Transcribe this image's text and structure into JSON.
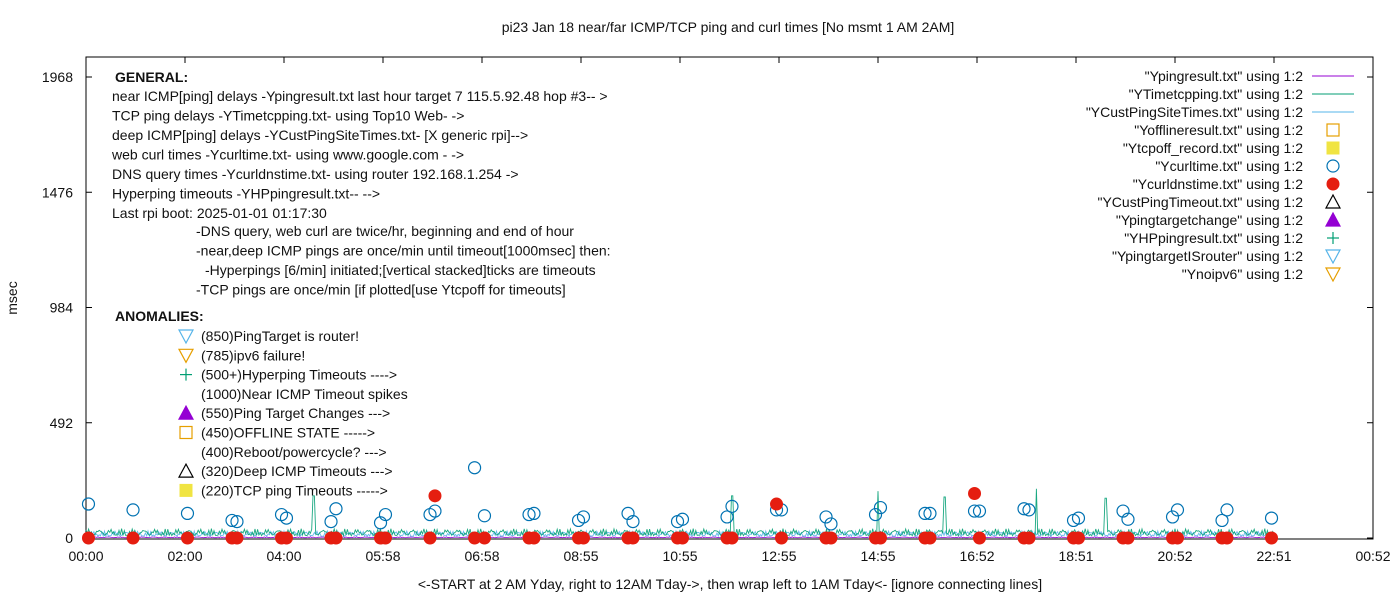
{
  "chart_data": {
    "type": "line",
    "title": "pi23 Jan 18  near/far ICMP/TCP  ping and curl times [No msmt 1 AM 2AM]",
    "xlabel": "<-START at 2 AM Yday, right to 12AM Tday->, then wrap left to 1AM Tday<- [ignore connecting lines]",
    "ylabel": "msec",
    "ylim": [
      0,
      2000
    ],
    "grid": false,
    "legend_position": "top-right",
    "x_ticks": [
      "00:00",
      "02:00",
      "04:00",
      "05:58",
      "06:58",
      "08:55",
      "10:55",
      "12:55",
      "14:55",
      "16:52",
      "18:51",
      "20:52",
      "22:51",
      "00:52"
    ],
    "y_ticks": [
      0,
      492,
      984,
      1476,
      1968
    ],
    "annotations": {
      "general_header": "GENERAL:",
      "general_lines": [
        "near ICMP[ping] delays -Ypingresult.txt last hour target 7 115.5.92.48 hop #3-- >",
        "TCP ping delays -YTimetcpping.txt- using Top10 Web- ->",
        "deep ICMP[ping] delays -YCustPingSiteTimes.txt- [X generic rpi]-->",
        "web curl times -Ycurltime.txt- using www.google.com - ->",
        "DNS query times -Ycurldnstime.txt- using router 192.168.1.254 ->",
        "Hyperping timeouts -YHPpingresult.txt-- -->",
        "Last rpi boot: 2025-01-01 01:17:30"
      ],
      "general_notes": [
        "-DNS query, web curl are twice/hr, beginning and end of hour",
        "-near,deep ICMP pings are once/min until timeout[1000msec] then:",
        "-Hyperpings [6/min] initiated;[vertical stacked]ticks are timeouts",
        "-TCP pings are once/min [if plotted[use Ytcpoff for timeouts]"
      ],
      "anomalies_header": "ANOMALIES:",
      "anomalies": [
        {
          "text": "(850)PingTarget is router!",
          "marker": "triangle-down-open",
          "color": "#56b4e9"
        },
        {
          "text": "(785)ipv6 failure!",
          "marker": "triangle-down-open",
          "color": "#e69f00"
        },
        {
          "text": "(500+)Hyperping Timeouts ---->",
          "marker": "plus",
          "color": "#009e73"
        },
        {
          "text": "(1000)Near ICMP Timeout spikes",
          "marker": "",
          "color": ""
        },
        {
          "text": "(550)Ping Target Changes --->",
          "marker": "triangle-up-filled",
          "color": "#9400d3"
        },
        {
          "text": "(450)OFFLINE STATE ----->",
          "marker": "square-open",
          "color": "#e69f00"
        },
        {
          "text": "(400)Reboot/powercycle? --->",
          "marker": "",
          "color": ""
        },
        {
          "text": "(320)Deep ICMP Timeouts --->",
          "marker": "triangle-up-open",
          "color": "#000000"
        },
        {
          "text": "(220)TCP ping Timeouts ----->",
          "marker": "square-filled",
          "color": "#f0e442"
        }
      ]
    },
    "legend": [
      {
        "label": "\"Ypingresult.txt\" using 1:2",
        "style": "line",
        "color": "#9400d3"
      },
      {
        "label": "\"YTimetcpping.txt\" using 1:2",
        "style": "line",
        "color": "#009e73"
      },
      {
        "label": "\"YCustPingSiteTimes.txt\" using 1:2",
        "style": "line",
        "color": "#56b4e9"
      },
      {
        "label": "\"Yofflineresult.txt\" using 1:2",
        "style": "square-open",
        "color": "#e69f00"
      },
      {
        "label": "\"Ytcpoff_record.txt\" using 1:2",
        "style": "square-filled",
        "color": "#f0e442"
      },
      {
        "label": "\"Ycurltime.txt\" using 1:2",
        "style": "circle-open",
        "color": "#0072b2"
      },
      {
        "label": "\"Ycurldnstime.txt\" using 1:2",
        "style": "circle-filled",
        "color": "#e51e10"
      },
      {
        "label": "\"YCustPingTimeout.txt\" using 1:2",
        "style": "triangle-up-open",
        "color": "#000000"
      },
      {
        "label": "\"Ypingtargetchange\" using 1:2",
        "style": "triangle-up-filled",
        "color": "#9400d3"
      },
      {
        "label": "\"YHPpingresult.txt\" using 1:2",
        "style": "plus",
        "color": "#009e73"
      },
      {
        "label": "\"YpingtargetISrouter\" using 1:2",
        "style": "triangle-down-open",
        "color": "#56b4e9"
      },
      {
        "label": "\"Ynoipv6\" using 1:2",
        "style": "triangle-down-open",
        "color": "#e69f00"
      }
    ],
    "series": [
      {
        "name": "\"Ycurltime.txt\" using 1:2",
        "marker": "circle-open",
        "color": "#0072b2",
        "points": [
          [
            0.05,
            145
          ],
          [
            0.95,
            120
          ],
          [
            2.05,
            105
          ],
          [
            2.95,
            75
          ],
          [
            3.05,
            70
          ],
          [
            3.95,
            100
          ],
          [
            4.05,
            85
          ],
          [
            4.95,
            70
          ],
          [
            5.05,
            125
          ],
          [
            5.95,
            65
          ],
          [
            6.05,
            100
          ],
          [
            6.95,
            100
          ],
          [
            7.05,
            115
          ],
          [
            7.85,
            300
          ],
          [
            8.05,
            95
          ],
          [
            8.95,
            100
          ],
          [
            9.05,
            105
          ],
          [
            9.95,
            75
          ],
          [
            10.05,
            90
          ],
          [
            10.95,
            105
          ],
          [
            11.05,
            70
          ],
          [
            11.95,
            70
          ],
          [
            12.05,
            80
          ],
          [
            12.95,
            90
          ],
          [
            13.05,
            135
          ],
          [
            13.95,
            120
          ],
          [
            14.05,
            120
          ],
          [
            14.95,
            90
          ],
          [
            15.05,
            60
          ],
          [
            15.95,
            100
          ],
          [
            16.05,
            130
          ],
          [
            16.95,
            105
          ],
          [
            17.05,
            105
          ],
          [
            17.95,
            115
          ],
          [
            18.05,
            115
          ],
          [
            18.95,
            125
          ],
          [
            19.05,
            120
          ],
          [
            19.95,
            75
          ],
          [
            20.05,
            85
          ],
          [
            20.95,
            115
          ],
          [
            21.05,
            80
          ],
          [
            21.95,
            90
          ],
          [
            22.05,
            120
          ],
          [
            22.95,
            75
          ],
          [
            23.05,
            120
          ],
          [
            23.95,
            85
          ]
        ]
      },
      {
        "name": "\"Ycurldnstime.txt\" using 1:2",
        "marker": "circle-filled",
        "color": "#e51e10",
        "points": [
          [
            0.05,
            0
          ],
          [
            0.95,
            0
          ],
          [
            2.05,
            0
          ],
          [
            2.95,
            0
          ],
          [
            3.05,
            0
          ],
          [
            3.95,
            0
          ],
          [
            4.05,
            0
          ],
          [
            4.95,
            0
          ],
          [
            5.05,
            0
          ],
          [
            5.95,
            0
          ],
          [
            6.05,
            0
          ],
          [
            6.95,
            0
          ],
          [
            7.05,
            180
          ],
          [
            7.85,
            0
          ],
          [
            8.05,
            0
          ],
          [
            8.95,
            0
          ],
          [
            9.05,
            0
          ],
          [
            9.95,
            0
          ],
          [
            10.05,
            0
          ],
          [
            10.95,
            0
          ],
          [
            11.05,
            0
          ],
          [
            11.95,
            0
          ],
          [
            12.05,
            0
          ],
          [
            12.95,
            0
          ],
          [
            13.05,
            0
          ],
          [
            13.95,
            145
          ],
          [
            14.05,
            0
          ],
          [
            14.95,
            0
          ],
          [
            15.05,
            0
          ],
          [
            15.95,
            0
          ],
          [
            16.05,
            0
          ],
          [
            16.95,
            0
          ],
          [
            17.05,
            0
          ],
          [
            17.95,
            190
          ],
          [
            18.05,
            0
          ],
          [
            18.95,
            0
          ],
          [
            19.05,
            0
          ],
          [
            19.95,
            0
          ],
          [
            20.05,
            0
          ],
          [
            20.95,
            0
          ],
          [
            21.05,
            0
          ],
          [
            21.95,
            0
          ],
          [
            22.05,
            0
          ],
          [
            22.95,
            0
          ],
          [
            23.05,
            0
          ],
          [
            23.95,
            0
          ]
        ]
      }
    ],
    "dense_traces": [
      {
        "name": "\"YTimetcpping.txt\" using 1:2",
        "color": "#009e73",
        "x_range": [
          0,
          24
        ],
        "typical_msec": 40,
        "spikes": [
          [
            4.6,
            180
          ],
          [
            13.05,
            180
          ],
          [
            16.0,
            200
          ],
          [
            17.35,
            175
          ],
          [
            19.2,
            210
          ],
          [
            20.6,
            170
          ]
        ]
      },
      {
        "name": "\"YCustPingSiteTimes.txt\" using 1:2",
        "color": "#56b4e9",
        "x_range": [
          0,
          24
        ],
        "typical_msec": 30,
        "spikes": []
      },
      {
        "name": "\"Ypingresult.txt\" using 1:2",
        "color": "#9400d3",
        "x_range": [
          0,
          24
        ],
        "typical_msec": 5,
        "spikes": []
      }
    ]
  }
}
